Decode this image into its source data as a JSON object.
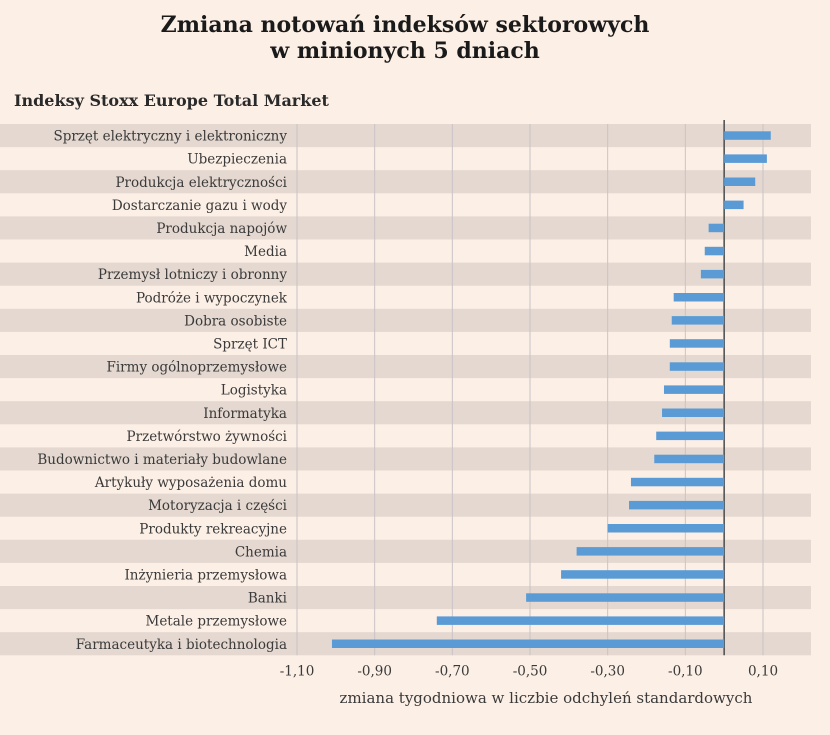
{
  "title_line1": "Zmiana notowań indeksów sektorowych",
  "title_line2": "w minionych 5 dniach",
  "subtitle": "Indeksy Stoxx Europe Total Market",
  "colors": {
    "bar": "#5b9bd5",
    "band": "#e4d8d0",
    "background": "#fcefe6",
    "grid": "#c9c3c6",
    "zero_line": "#555555"
  },
  "chart_data": {
    "type": "bar",
    "orientation": "horizontal",
    "categories": [
      "Sprzęt elektryczny i elektroniczny",
      "Ubezpieczenia",
      "Produkcja elektryczności",
      "Dostarczanie gazu i wody",
      "Produkcja napojów",
      "Media",
      "Przemysł lotniczy i obronny",
      "Podróże i wypoczynek",
      "Dobra osobiste",
      "Sprzęt ICT",
      "Firmy ogólnoprzemysłowe",
      "Logistyka",
      "Informatyka",
      "Przetwórstwo żywności",
      "Budownictwo i materiały budowlane",
      "Artykuły wyposażenia domu",
      "Motoryzacja i części",
      "Produkty rekreacyjne",
      "Chemia",
      "Inżynieria przemysłowa",
      "Banki",
      "Metale przemysłowe",
      "Farmaceutyka i biotechnologia"
    ],
    "values": [
      0.12,
      0.11,
      0.08,
      0.05,
      -0.04,
      -0.05,
      -0.06,
      -0.13,
      -0.135,
      -0.14,
      -0.14,
      -0.155,
      -0.16,
      -0.175,
      -0.18,
      -0.24,
      -0.245,
      -0.3,
      -0.38,
      -0.42,
      -0.51,
      -0.74,
      -1.01
    ],
    "xlabel": "zmiana tygodniowa w liczbie odchyleń standardowych",
    "xlim": [
      -1.1,
      0.2
    ],
    "xticks": [
      -1.1,
      -0.9,
      -0.7,
      -0.5,
      -0.3,
      -0.1,
      0.1
    ],
    "xtick_labels": [
      "-1,10",
      "-0,90",
      "-0,70",
      "-0,50",
      "-0,30",
      "-0,10",
      "0,10"
    ],
    "grid": true
  }
}
